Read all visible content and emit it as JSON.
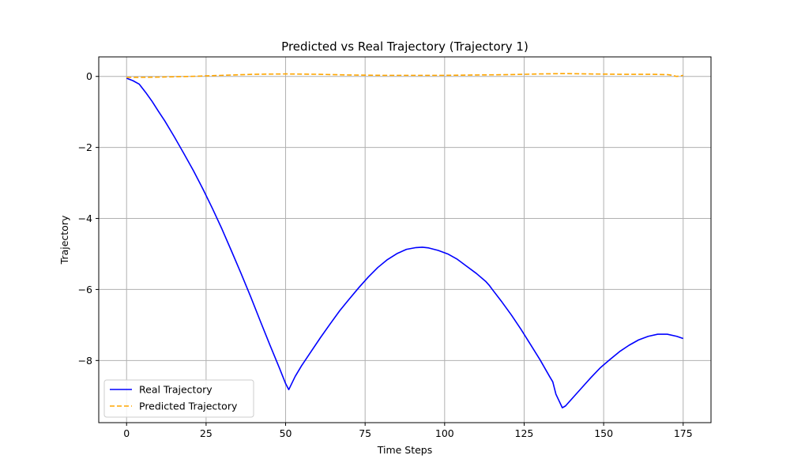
{
  "chart_data": {
    "type": "line",
    "title": "Predicted vs Real Trajectory (Trajectory 1)",
    "xlabel": "Time Steps",
    "ylabel": "Trajectory",
    "xlim": [
      -8.75,
      183.75
    ],
    "ylim": [
      -9.75,
      0.55
    ],
    "xticks": [
      0,
      25,
      50,
      75,
      100,
      125,
      150,
      175
    ],
    "yticks": [
      0,
      -2,
      -4,
      -6,
      -8
    ],
    "grid": true,
    "legend_position": "lower-left",
    "series": [
      {
        "name": "Real Trajectory",
        "color": "#0000ff",
        "style": "solid",
        "x": [
          0,
          2,
          4,
          6,
          8,
          10,
          12,
          15,
          18,
          21,
          24,
          27,
          30,
          33,
          36,
          39,
          42,
          45,
          48,
          50,
          51,
          53,
          55,
          58,
          61,
          64,
          67,
          70,
          73,
          76,
          79,
          82,
          85,
          88,
          91,
          93,
          95,
          98,
          101,
          104,
          107,
          110,
          113,
          114,
          115,
          118,
          121,
          124,
          127,
          130,
          133,
          134,
          135,
          137,
          138,
          140,
          143,
          146,
          149,
          152,
          155,
          158,
          161,
          164,
          167,
          170,
          173,
          175
        ],
        "y": [
          -0.05,
          -0.12,
          -0.22,
          -0.45,
          -0.7,
          -0.98,
          -1.25,
          -1.7,
          -2.17,
          -2.65,
          -3.17,
          -3.72,
          -4.3,
          -4.92,
          -5.55,
          -6.2,
          -6.88,
          -7.55,
          -8.2,
          -8.65,
          -8.82,
          -8.45,
          -8.15,
          -7.75,
          -7.35,
          -6.97,
          -6.6,
          -6.27,
          -5.95,
          -5.65,
          -5.38,
          -5.16,
          -4.99,
          -4.87,
          -4.82,
          -4.81,
          -4.83,
          -4.9,
          -5.0,
          -5.15,
          -5.35,
          -5.55,
          -5.78,
          -5.88,
          -6.0,
          -6.35,
          -6.72,
          -7.12,
          -7.55,
          -7.98,
          -8.45,
          -8.6,
          -8.95,
          -9.33,
          -9.28,
          -9.08,
          -8.78,
          -8.48,
          -8.2,
          -7.97,
          -7.75,
          -7.57,
          -7.42,
          -7.32,
          -7.26,
          -7.26,
          -7.32,
          -7.38
        ]
      },
      {
        "name": "Predicted Trajectory",
        "color": "#ffa500",
        "style": "dashed",
        "x": [
          0,
          10,
          20,
          30,
          40,
          50,
          60,
          70,
          80,
          90,
          100,
          110,
          120,
          130,
          138,
          145,
          155,
          165,
          170,
          171,
          173,
          175
        ],
        "y": [
          -0.03,
          -0.02,
          0.0,
          0.03,
          0.06,
          0.07,
          0.06,
          0.04,
          0.03,
          0.03,
          0.03,
          0.04,
          0.05,
          0.07,
          0.08,
          0.07,
          0.06,
          0.06,
          0.05,
          0.04,
          0.0,
          0.03
        ]
      }
    ]
  }
}
